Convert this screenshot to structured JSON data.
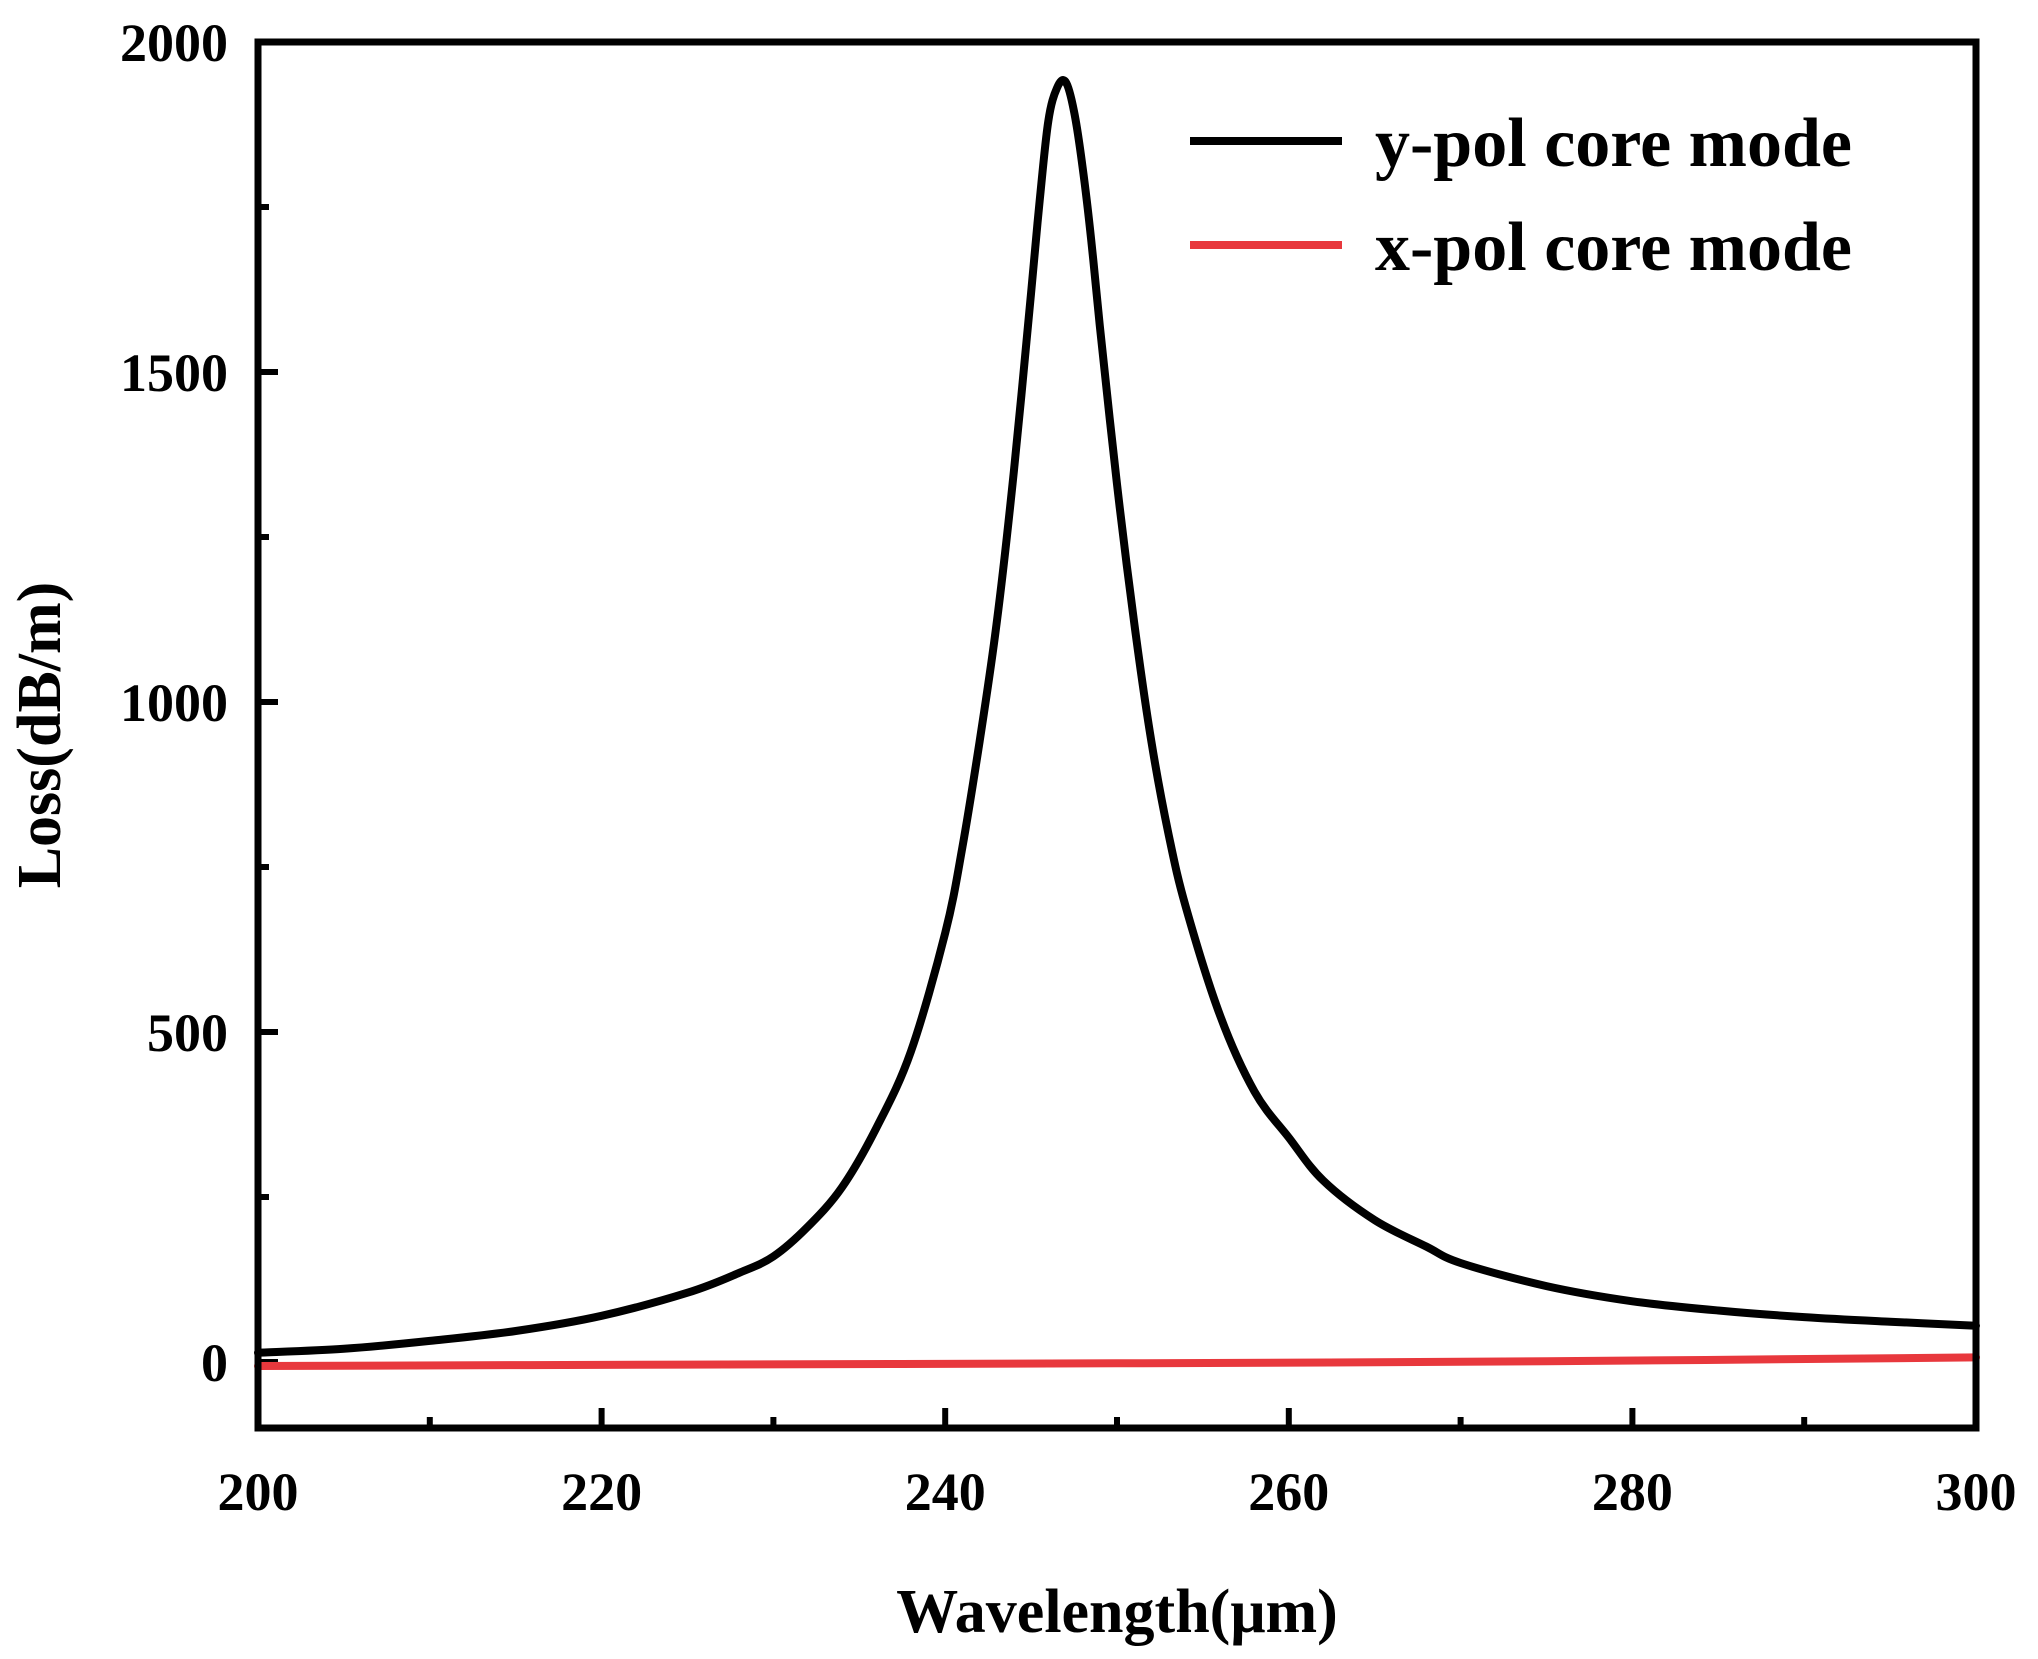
{
  "chart_data": {
    "type": "line",
    "title": "",
    "xlabel": "Wavelength(μm)",
    "ylabel": "Loss(dB/m)",
    "xlim": [
      200,
      300
    ],
    "ylim": [
      -100,
      2000
    ],
    "x_ticks": [
      200,
      220,
      240,
      260,
      280,
      300
    ],
    "x_tick_labels": [
      "200",
      "220",
      "240",
      "260",
      "280",
      "300"
    ],
    "x_minor_ticks": [
      210,
      230,
      250,
      270,
      290
    ],
    "y_ticks": [
      0,
      500,
      1000,
      1500,
      2000
    ],
    "y_tick_labels": [
      "0",
      "500",
      "1000",
      "1500",
      "2000"
    ],
    "y_minor_ticks": [
      250,
      750,
      1250,
      1750
    ],
    "grid": false,
    "legend_position": "top-right",
    "series": [
      {
        "name": "y-pol core mode",
        "color": "#000000",
        "x": [
          200,
          205,
          210,
          215,
          220,
          225,
          228,
          230,
          232,
          234,
          236,
          238,
          240,
          241,
          242,
          243,
          244,
          245,
          245.5,
          246,
          246.5,
          247,
          247.5,
          248,
          248.5,
          249,
          250,
          251,
          252,
          253,
          254,
          256,
          258,
          260,
          262,
          265,
          268,
          270,
          275,
          280,
          285,
          290,
          295,
          300
        ],
        "values": [
          14,
          20,
          32,
          47,
          70,
          105,
          135,
          160,
          205,
          265,
          355,
          470,
          650,
          780,
          940,
          1120,
          1350,
          1620,
          1760,
          1880,
          1930,
          1940,
          1895,
          1810,
          1700,
          1570,
          1330,
          1120,
          940,
          800,
          690,
          525,
          410,
          340,
          275,
          215,
          175,
          150,
          115,
          92,
          78,
          68,
          61,
          55
        ]
      },
      {
        "name": "x-pol core mode",
        "color": "#e8383d",
        "x": [
          200,
          225,
          250,
          275,
          300
        ],
        "values": [
          -6,
          -4,
          -2,
          1,
          7
        ]
      }
    ]
  }
}
